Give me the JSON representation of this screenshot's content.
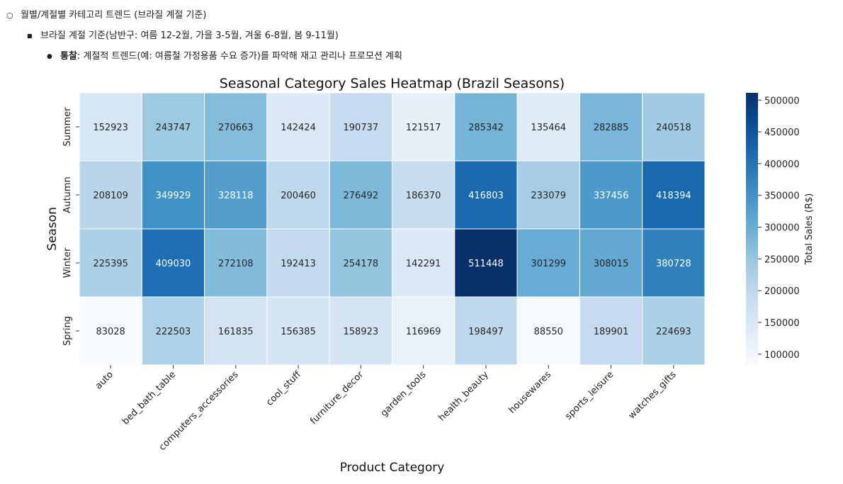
{
  "notes": {
    "item1": "월별/계절별 카테고리 트렌드 (브라질 계절 기준)",
    "item2": "브라질 계절 기준(남반구: 여름 12-2월, 가을 3-5월, 겨울 6-8월, 봄 9-11월)",
    "item3_label": "통찰",
    "item3_text": ": 계절적 트렌드(예: 여름철 가정용품 수요 증가)를 파악해 재고 관리나 프로모션 계획",
    "bullet1": "○",
    "bullet2": "■",
    "bullet3": "●"
  },
  "chart_data": {
    "type": "heatmap",
    "title": "Seasonal Category Sales Heatmap (Brazil Seasons)",
    "xlabel": "Product Category",
    "ylabel": "Season",
    "colorbar_label": "Total Sales (R$)",
    "colormap": "Blues",
    "categories": [
      "auto",
      "bed_bath_table",
      "computers_accessories",
      "cool_stuff",
      "furniture_decor",
      "garden_tools",
      "health_beauty",
      "housewares",
      "sports_leisure",
      "watches_gifts"
    ],
    "seasons": [
      "Summer",
      "Autumn",
      "Winter",
      "Spring"
    ],
    "values": [
      [
        152923,
        243747,
        270663,
        142424,
        190737,
        121517,
        285342,
        135464,
        282885,
        240518
      ],
      [
        208109,
        349929,
        328118,
        200460,
        276492,
        186370,
        416803,
        233079,
        337456,
        418394
      ],
      [
        225395,
        409030,
        272108,
        192413,
        254178,
        142291,
        511448,
        301299,
        308015,
        380728
      ],
      [
        83028,
        222503,
        161835,
        156385,
        158923,
        116969,
        198497,
        88550,
        189901,
        224693
      ]
    ],
    "vmin": 83028,
    "vmax": 511448,
    "colorbar_ticks": [
      "100000",
      "150000",
      "200000",
      "250000",
      "300000",
      "350000",
      "400000",
      "450000",
      "500000"
    ]
  }
}
